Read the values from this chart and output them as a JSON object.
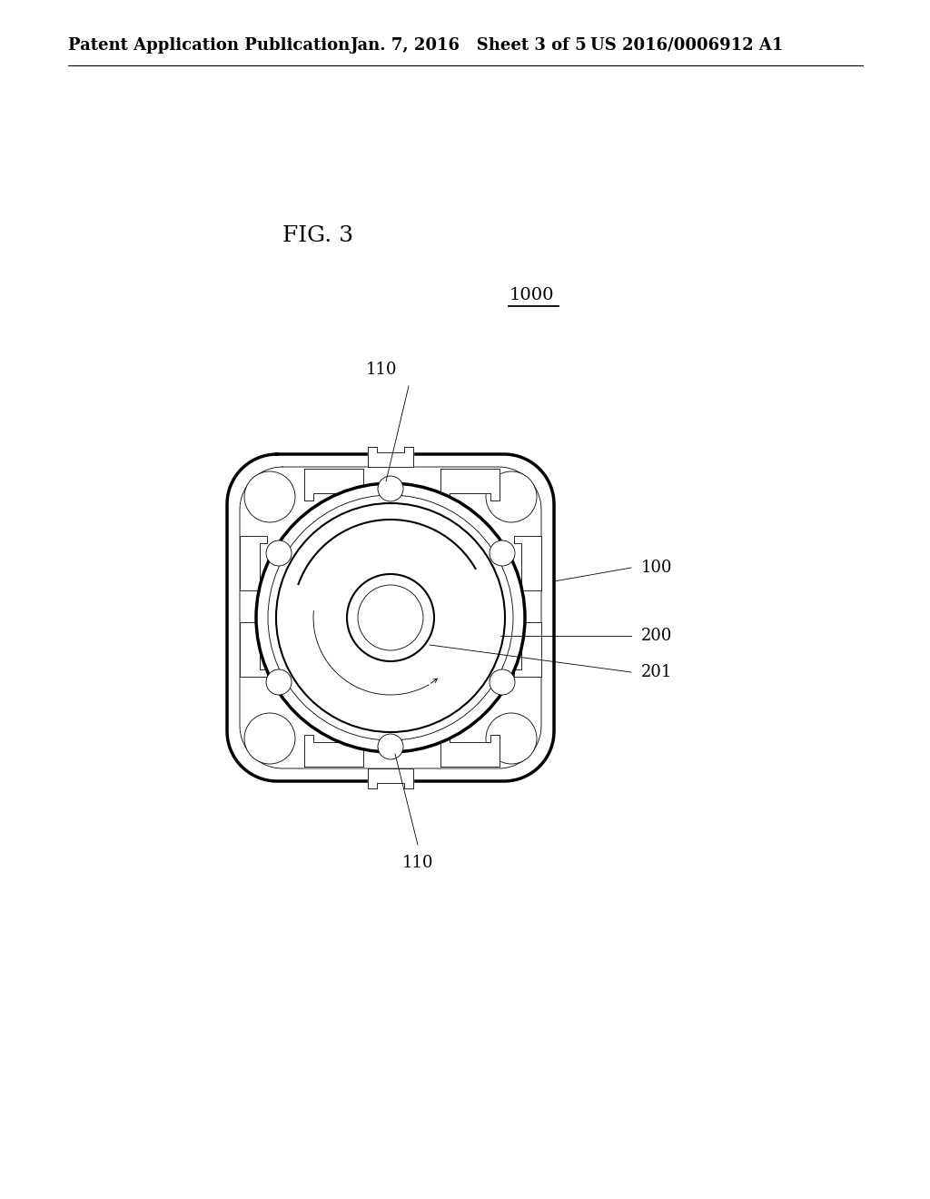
{
  "background_color": "#ffffff",
  "header_left": "Patent Application Publication",
  "header_mid": "Jan. 7, 2016   Sheet 3 of 5",
  "header_right": "US 2016/0006912 A1",
  "fig_label": "FIG. 3",
  "ref_1000": "1000",
  "ref_110_top": "110",
  "ref_100": "100",
  "ref_200": "200",
  "ref_201": "201",
  "ref_110_bot": "110",
  "line_color": "#000000",
  "lw_heavy": 2.5,
  "lw_med": 1.5,
  "lw_light": 0.9,
  "lw_thin": 0.6
}
